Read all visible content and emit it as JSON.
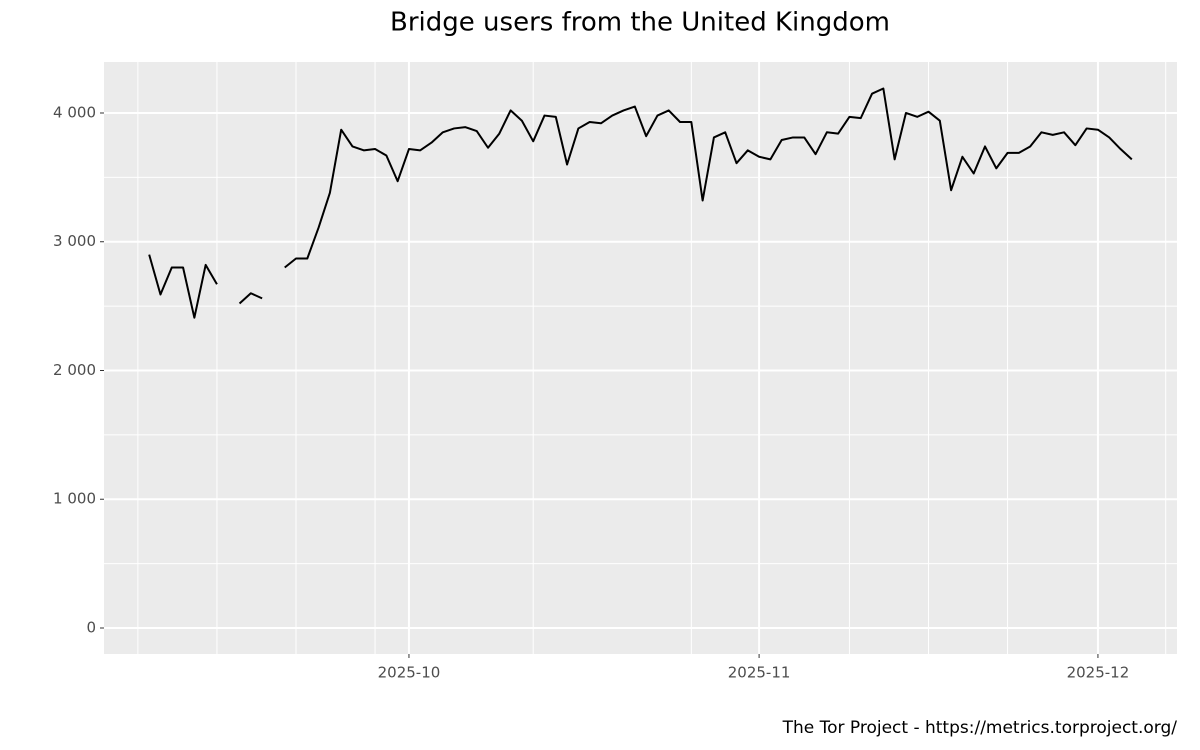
{
  "chart_data": {
    "type": "line",
    "title": "Bridge users from the United Kingdom",
    "caption": "The Tor Project - https://metrics.torproject.org/",
    "x": [
      "2025-09-08",
      "2025-09-09",
      "2025-09-10",
      "2025-09-11",
      "2025-09-12",
      "2025-09-13",
      "2025-09-14",
      "2025-09-15",
      "2025-09-16",
      "2025-09-17",
      "2025-09-18",
      "2025-09-19",
      "2025-09-20",
      "2025-09-21",
      "2025-09-22",
      "2025-09-23",
      "2025-09-24",
      "2025-09-25",
      "2025-09-26",
      "2025-09-27",
      "2025-09-28",
      "2025-09-29",
      "2025-09-30",
      "2025-10-01",
      "2025-10-02",
      "2025-10-03",
      "2025-10-04",
      "2025-10-05",
      "2025-10-06",
      "2025-10-07",
      "2025-10-08",
      "2025-10-09",
      "2025-10-10",
      "2025-10-11",
      "2025-10-12",
      "2025-10-13",
      "2025-10-14",
      "2025-10-15",
      "2025-10-16",
      "2025-10-17",
      "2025-10-18",
      "2025-10-19",
      "2025-10-20",
      "2025-10-21",
      "2025-10-22",
      "2025-10-23",
      "2025-10-24",
      "2025-10-25",
      "2025-10-26",
      "2025-10-27",
      "2025-10-28",
      "2025-10-29",
      "2025-10-30",
      "2025-10-31",
      "2025-11-01",
      "2025-11-02",
      "2025-11-03",
      "2025-11-04",
      "2025-11-05",
      "2025-11-06",
      "2025-11-07",
      "2025-11-08",
      "2025-11-09",
      "2025-11-10",
      "2025-11-11",
      "2025-11-12",
      "2025-11-13",
      "2025-11-14",
      "2025-11-15",
      "2025-11-16",
      "2025-11-17",
      "2025-11-18",
      "2025-11-19",
      "2025-11-20",
      "2025-11-21",
      "2025-11-22",
      "2025-11-23",
      "2025-11-24",
      "2025-11-25",
      "2025-11-26",
      "2025-11-27",
      "2025-11-28",
      "2025-11-29",
      "2025-11-30",
      "2025-12-01",
      "2025-12-02",
      "2025-12-03",
      "2025-12-04"
    ],
    "values": [
      2900,
      2590,
      2800,
      2800,
      2410,
      2820,
      2670,
      null,
      2520,
      2600,
      2560,
      null,
      2800,
      2870,
      2870,
      3110,
      3380,
      3870,
      3740,
      3710,
      3720,
      3670,
      3470,
      3720,
      3710,
      3770,
      3850,
      3880,
      3890,
      3860,
      3730,
      3840,
      4020,
      3940,
      3780,
      3980,
      3970,
      3600,
      3880,
      3930,
      3920,
      3980,
      4020,
      4050,
      3820,
      3980,
      4020,
      3930,
      3930,
      3320,
      3810,
      3850,
      3610,
      3710,
      3660,
      3640,
      3790,
      3810,
      3810,
      3680,
      3850,
      3840,
      3970,
      3960,
      4150,
      4190,
      3640,
      4000,
      3970,
      4010,
      3940,
      3400,
      3660,
      3530,
      3740,
      3570,
      3690,
      3690,
      3740,
      3850,
      3830,
      3850,
      3750,
      3880,
      3870,
      3810,
      3720,
      3640
    ],
    "color": "#000000",
    "xlim": [
      "2025-09-04",
      "2025-12-08"
    ],
    "xticks": [
      {
        "value": "2025-10-01",
        "label": "2025-10"
      },
      {
        "value": "2025-11-01",
        "label": "2025-11"
      },
      {
        "value": "2025-12-01",
        "label": "2025-12"
      }
    ],
    "xminorticks": [
      "2025-09-07",
      "2025-09-14",
      "2025-09-21",
      "2025-09-28",
      "2025-10-12",
      "2025-10-26",
      "2025-11-09",
      "2025-11-16",
      "2025-11-23",
      "2025-12-07"
    ],
    "ylim": [
      -202,
      4396
    ],
    "yticks": [
      0,
      {
        "value": 1000,
        "label": "1 000"
      },
      {
        "value": 2000,
        "label": "2 000"
      },
      {
        "value": 3000,
        "label": "3 000"
      },
      {
        "value": 4000,
        "label": "4 000"
      }
    ],
    "yminorticks": [
      500,
      1500,
      2500,
      3500
    ],
    "grid": true
  }
}
